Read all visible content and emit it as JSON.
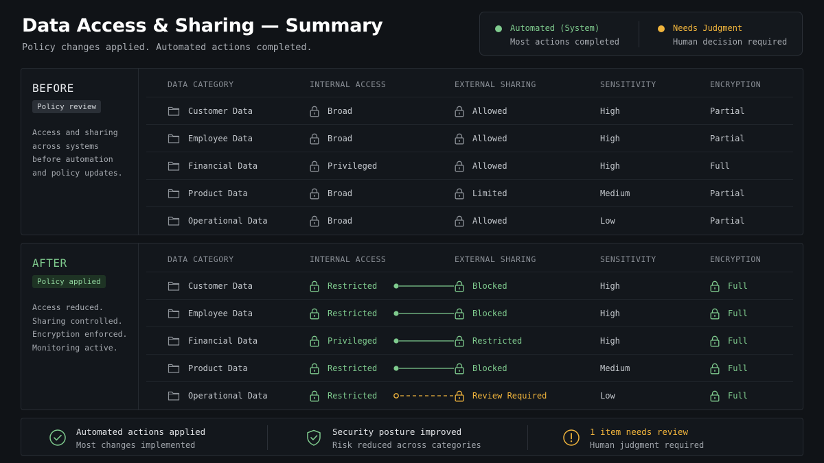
{
  "header": {
    "title": "Data Access & Sharing — Summary",
    "subtitle": "Policy changes applied. Automated actions completed."
  },
  "legend": {
    "automated": {
      "title": "Automated (System)",
      "subtitle": "Most actions completed",
      "color": "#7fcb8e"
    },
    "judgment": {
      "title": "Needs Judgment",
      "subtitle": "Human decision required",
      "color": "#f0b43c"
    }
  },
  "columns": [
    "DATA CATEGORY",
    "INTERNAL ACCESS",
    "EXTERNAL SHARING",
    "SENSITIVITY",
    "ENCRYPTION"
  ],
  "before": {
    "label": "BEFORE",
    "badge": "Policy review",
    "desc": [
      "Access and sharing",
      "across systems",
      "before automation",
      "and policy updates."
    ],
    "rows": [
      {
        "category": "Customer Data",
        "internal": "Broad",
        "external": "Allowed",
        "sensitivity": "High",
        "encryption": "Partial"
      },
      {
        "category": "Employee Data",
        "internal": "Broad",
        "external": "Allowed",
        "sensitivity": "High",
        "encryption": "Partial"
      },
      {
        "category": "Financial Data",
        "internal": "Privileged",
        "external": "Allowed",
        "sensitivity": "High",
        "encryption": "Full"
      },
      {
        "category": "Product Data",
        "internal": "Broad",
        "external": "Limited",
        "sensitivity": "Medium",
        "encryption": "Partial"
      },
      {
        "category": "Operational Data",
        "internal": "Broad",
        "external": "Allowed",
        "sensitivity": "Low",
        "encryption": "Partial"
      }
    ]
  },
  "after": {
    "label": "AFTER",
    "badge": "Policy applied",
    "desc": [
      "Access reduced.",
      "Sharing controlled.",
      "Encryption enforced.",
      "Monitoring active."
    ],
    "rows": [
      {
        "category": "Customer Data",
        "internal": "Restricted",
        "external": "Blocked",
        "sensitivity": "High",
        "encryption": "Full",
        "status": "automated"
      },
      {
        "category": "Employee Data",
        "internal": "Restricted",
        "external": "Blocked",
        "sensitivity": "High",
        "encryption": "Full",
        "status": "automated"
      },
      {
        "category": "Financial Data",
        "internal": "Privileged",
        "external": "Restricted",
        "sensitivity": "High",
        "encryption": "Full",
        "status": "automated"
      },
      {
        "category": "Product Data",
        "internal": "Restricted",
        "external": "Blocked",
        "sensitivity": "Medium",
        "encryption": "Full",
        "status": "automated"
      },
      {
        "category": "Operational Data",
        "internal": "Restricted",
        "external": "Review Required",
        "sensitivity": "Low",
        "encryption": "Full",
        "status": "judgment"
      }
    ]
  },
  "summary": [
    {
      "icon": "check-circle-icon",
      "title": "Automated actions applied",
      "subtitle": "Most changes implemented",
      "tone": "automated"
    },
    {
      "icon": "shield-check-icon",
      "title": "Security posture improved",
      "subtitle": "Risk reduced across categories",
      "tone": "automated"
    },
    {
      "icon": "alert-circle-icon",
      "title": "1 item needs review",
      "subtitle": "Human judgment required",
      "tone": "judgment"
    }
  ]
}
